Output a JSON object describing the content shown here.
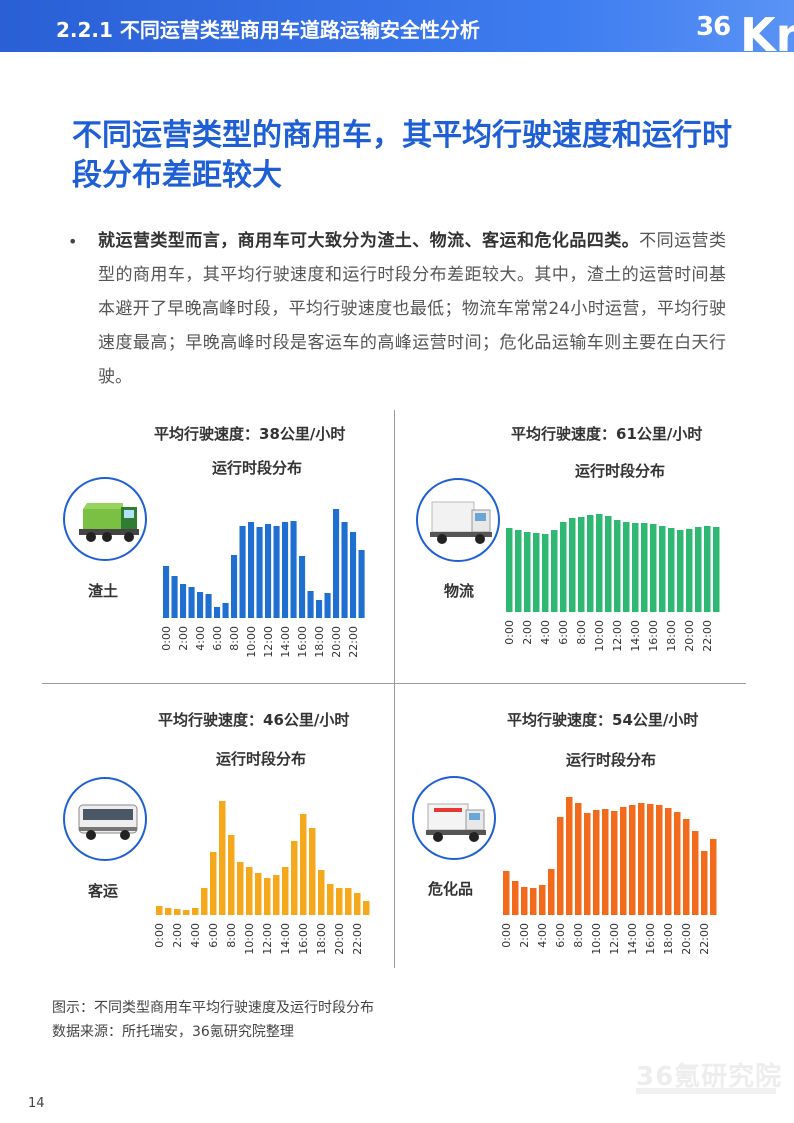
{
  "header": {
    "title": "2.2.1 不同运营类型商用车道路运输安全性分析",
    "logo_num": "36",
    "logo_k": "Kr"
  },
  "headline": "不同运营类型的商用车，其平均行驶速度和运行时段分布差距较大",
  "paragraph": {
    "lead": "就运营类型而言，商用车可大致分为渣土、物流、客运和危化品四类。",
    "body": "不同运营类型的商用车，其平均行驶速度和运行时段分布差距较大。其中，渣土的运营时间基本避开了早晚高峰时段，平均行驶速度也最低；物流车常常24小时运营，平均行驶速度最高；早晚高峰时段是客运车的高峰运营时间；危化品运输车则主要在白天行驶。"
  },
  "chart_data": [
    {
      "type": "bar",
      "name": "渣土",
      "speed_label": "平均行驶速度：38公里/小时",
      "subtitle": "运行时段分布",
      "color": "#1e6fd0",
      "x": [
        "0:00",
        "1:00",
        "2:00",
        "3:00",
        "4:00",
        "5:00",
        "6:00",
        "7:00",
        "8:00",
        "9:00",
        "10:00",
        "11:00",
        "12:00",
        "13:00",
        "14:00",
        "15:00",
        "16:00",
        "17:00",
        "18:00",
        "19:00",
        "20:00",
        "21:00",
        "22:00",
        "23:00"
      ],
      "tick_labels": [
        "0:00",
        "2:00",
        "4:00",
        "6:00",
        "8:00",
        "10:00",
        "12:00",
        "14:00",
        "16:00",
        "18:00",
        "20:00",
        "22:00"
      ],
      "values": [
        52,
        42,
        34,
        31,
        26,
        24,
        11,
        15,
        63,
        92,
        96,
        91,
        94,
        92,
        96,
        97,
        62,
        27,
        18,
        25,
        109,
        96,
        86,
        68
      ]
    },
    {
      "type": "bar",
      "name": "物流",
      "speed_label": "平均行驶速度：61公里/小时",
      "subtitle": "运行时段分布",
      "color": "#2eb872",
      "x": [
        "0:00",
        "1:00",
        "2:00",
        "3:00",
        "4:00",
        "5:00",
        "6:00",
        "7:00",
        "8:00",
        "9:00",
        "10:00",
        "11:00",
        "12:00",
        "13:00",
        "14:00",
        "15:00",
        "16:00",
        "17:00",
        "18:00",
        "19:00",
        "20:00",
        "21:00",
        "22:00",
        "23:00"
      ],
      "tick_labels": [
        "0:00",
        "2:00",
        "4:00",
        "6:00",
        "8:00",
        "10:00",
        "12:00",
        "14:00",
        "16:00",
        "18:00",
        "20:00",
        "22:00"
      ],
      "values": [
        84,
        82,
        80,
        79,
        78,
        82,
        90,
        94,
        95,
        97,
        98,
        96,
        92,
        90,
        89,
        89,
        88,
        86,
        84,
        82,
        83,
        85,
        86,
        85
      ]
    },
    {
      "type": "bar",
      "name": "客运",
      "speed_label": "平均行驶速度：46公里/小时",
      "subtitle": "运行时段分布",
      "color": "#f5a81c",
      "x": [
        "0:00",
        "1:00",
        "2:00",
        "3:00",
        "4:00",
        "5:00",
        "6:00",
        "7:00",
        "8:00",
        "9:00",
        "10:00",
        "11:00",
        "12:00",
        "13:00",
        "14:00",
        "15:00",
        "16:00",
        "17:00",
        "18:00",
        "19:00",
        "20:00",
        "21:00",
        "22:00",
        "23:00"
      ],
      "tick_labels": [
        "0:00",
        "2:00",
        "4:00",
        "6:00",
        "8:00",
        "10:00",
        "12:00",
        "14:00",
        "16:00",
        "18:00",
        "20:00",
        "22:00"
      ],
      "values": [
        9,
        7,
        6,
        5,
        7,
        27,
        63,
        114,
        80,
        53,
        48,
        42,
        37,
        40,
        48,
        74,
        101,
        87,
        45,
        31,
        27,
        27,
        22,
        14
      ]
    },
    {
      "type": "bar",
      "name": "危化品",
      "speed_label": "平均行驶速度：54公里/小时",
      "subtitle": "运行时段分布",
      "color": "#f26a1b",
      "x": [
        "0:00",
        "1:00",
        "2:00",
        "3:00",
        "4:00",
        "5:00",
        "6:00",
        "7:00",
        "8:00",
        "9:00",
        "10:00",
        "11:00",
        "12:00",
        "13:00",
        "14:00",
        "15:00",
        "16:00",
        "17:00",
        "18:00",
        "19:00",
        "20:00",
        "21:00",
        "22:00",
        "23:00"
      ],
      "tick_labels": [
        "0:00",
        "2:00",
        "4:00",
        "6:00",
        "8:00",
        "10:00",
        "12:00",
        "14:00",
        "16:00",
        "18:00",
        "20:00",
        "22:00"
      ],
      "values": [
        44,
        34,
        28,
        27,
        30,
        46,
        98,
        118,
        112,
        102,
        105,
        106,
        104,
        108,
        110,
        112,
        111,
        110,
        107,
        103,
        96,
        84,
        64,
        76
      ]
    }
  ],
  "caption": {
    "line1": "图示：不同类型商用车平均行驶速度及运行时段分布",
    "line2": "数据来源：所托瑞安，36氪研究院整理"
  },
  "watermark": "36氪研究院",
  "page_number": "14"
}
